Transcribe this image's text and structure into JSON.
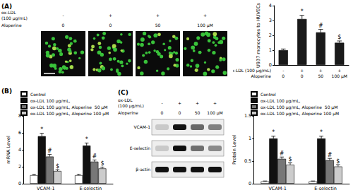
{
  "micrographs": {
    "panel": "(A)",
    "row_labels": [
      "ox-LDL\n(100 μg/mL)",
      "Aloperine"
    ],
    "columns": [
      [
        "-",
        "0"
      ],
      [
        "+",
        "0"
      ],
      [
        "+",
        "50"
      ],
      [
        "+",
        "100 μM"
      ]
    ]
  },
  "blot": {
    "panel": "(C)",
    "row_labels": [
      "ox-LDL\n(100 μg/mL)",
      "Aloperine"
    ],
    "columns": [
      [
        "-",
        "0"
      ],
      [
        "+",
        "0"
      ],
      [
        "+",
        "50"
      ],
      [
        "+",
        "100 μM"
      ]
    ],
    "bands": [
      "VCAM-1",
      "E-selectin",
      "β-actin"
    ]
  },
  "chart_data": [
    {
      "type": "bar",
      "ylabel": "U937 monocytes to HUVECs",
      "row_labels": [
        "ox-LDL (100 μg/mL)",
        "Aloperine"
      ],
      "categories": [
        "-\n0",
        "+\n0",
        "+\n50",
        "+\n100 μM"
      ],
      "values": [
        1.0,
        3.1,
        2.2,
        1.5
      ],
      "errors": [
        0.08,
        0.25,
        0.2,
        0.12
      ],
      "annotations": [
        null,
        "*",
        "#",
        "$"
      ],
      "color": "#1a1a1a",
      "ylim": [
        0,
        4
      ],
      "yticks": [
        0,
        1,
        2,
        3,
        4
      ]
    },
    {
      "type": "bar",
      "panel": "(B)",
      "ylabel": "mRNA Level",
      "categories": [
        "VCAM-1",
        "E-selectin"
      ],
      "series": [
        {
          "name": "Control",
          "color": "#ffffff",
          "values": [
            1.0,
            1.0
          ],
          "errors": [
            0.1,
            0.1
          ],
          "annotations": [
            null,
            null
          ]
        },
        {
          "name": "ox-LDL 100 μg/mL,",
          "color": "#111111",
          "values": [
            5.6,
            4.5
          ],
          "errors": [
            0.35,
            0.3
          ],
          "annotations": [
            "*",
            "*"
          ]
        },
        {
          "name": "ox-LDL 100 μg/mL, Aloperine  50 μM",
          "color": "#777777",
          "values": [
            3.2,
            2.6
          ],
          "errors": [
            0.25,
            0.2
          ],
          "annotations": [
            "#",
            "#"
          ]
        },
        {
          "name": "ox-LDL 100 μg/mL, Aloperine 100 μM",
          "color": "#cccccc",
          "values": [
            1.5,
            1.8
          ],
          "errors": [
            0.15,
            0.15
          ],
          "annotations": [
            "$",
            "$"
          ]
        }
      ],
      "ylim": [
        0,
        8
      ],
      "yticks": [
        0,
        2,
        4,
        6,
        8
      ],
      "legend": "top"
    },
    {
      "type": "bar",
      "ylabel": "Protein Level",
      "categories": [
        "VCAM-1",
        "E-selectin"
      ],
      "series": [
        {
          "name": "Control",
          "color": "#ffffff",
          "values": [
            0.05,
            0.05
          ],
          "errors": [
            0.01,
            0.01
          ],
          "annotations": [
            null,
            null
          ]
        },
        {
          "name": "ox-LDL 100 μg/mL,",
          "color": "#111111",
          "values": [
            1.0,
            1.0
          ],
          "errors": [
            0.05,
            0.05
          ],
          "annotations": [
            "*",
            "*"
          ]
        },
        {
          "name": "ox-LDL 100 μg/mL, Aloperine  50 μM",
          "color": "#777777",
          "values": [
            0.55,
            0.52
          ],
          "errors": [
            0.04,
            0.04
          ],
          "annotations": [
            "#",
            "#"
          ]
        },
        {
          "name": "ox-LDL 100 μg/mL, Aloperine 100 μM",
          "color": "#cccccc",
          "values": [
            0.42,
            0.38
          ],
          "errors": [
            0.04,
            0.04
          ],
          "annotations": [
            "$",
            "$"
          ]
        }
      ],
      "ylim": [
        0,
        1.5
      ],
      "yticks": [
        0,
        0.5,
        1,
        1.5
      ],
      "legend": "top"
    }
  ]
}
